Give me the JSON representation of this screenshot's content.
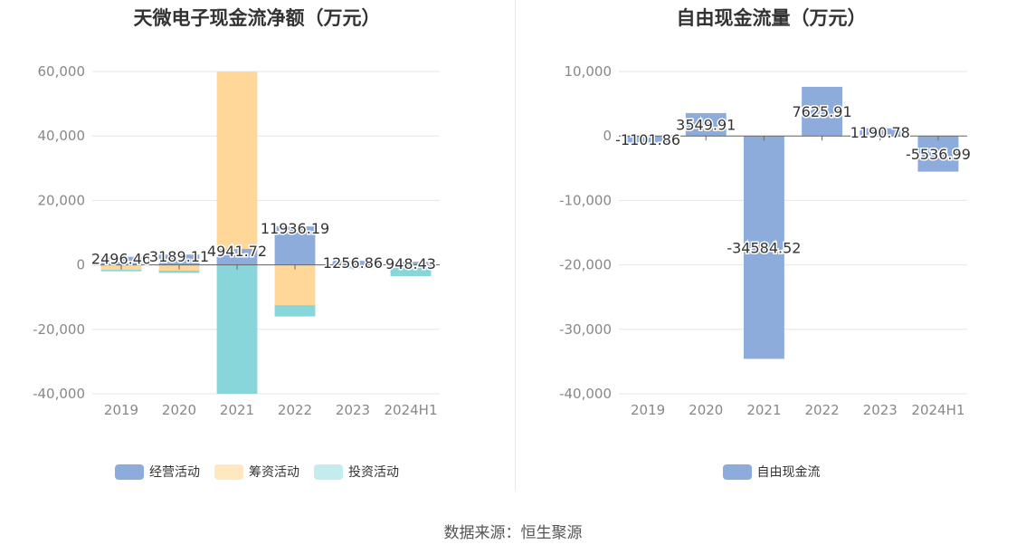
{
  "footer": {
    "source": "数据来源：恒生聚源"
  },
  "chart_data": [
    {
      "type": "bar",
      "title": "天微电子现金流净额（万元）",
      "categories": [
        "2019",
        "2020",
        "2021",
        "2022",
        "2023",
        "2024H1"
      ],
      "y_ticks": [
        60000,
        40000,
        20000,
        0,
        -20000,
        -40000
      ],
      "y_tick_labels": [
        "60,000",
        "40,000",
        "20,000",
        "0",
        "-20,000",
        "-40,000"
      ],
      "ylim": [
        -40000,
        60000
      ],
      "grid": true,
      "legend_position": "bottom",
      "stacked": true,
      "series": [
        {
          "name": "经营活动",
          "color": "#8eacdb",
          "values": [
            2496.46,
            3189.11,
            4941.72,
            11936.19,
            1256.86,
            948.43
          ]
        },
        {
          "name": "筹资活动",
          "color": "#ffd899",
          "values": [
            -1500,
            -1800,
            55000,
            -12500,
            -300,
            -300
          ]
        },
        {
          "name": "投资活动",
          "color": "#88d6da",
          "values": [
            -500,
            -700,
            -40000,
            -3500,
            -800,
            -3200
          ]
        }
      ],
      "data_labels": [
        "2496.46",
        "3189.11",
        "4941.72",
        "11936.19",
        "1256.86",
        "948.43"
      ]
    },
    {
      "type": "bar",
      "title": "自由现金流量（万元）",
      "categories": [
        "2019",
        "2020",
        "2021",
        "2022",
        "2023",
        "2024H1"
      ],
      "y_ticks": [
        10000,
        0,
        -10000,
        -20000,
        -30000,
        -40000
      ],
      "y_tick_labels": [
        "10,000",
        "0",
        "-10,000",
        "-20,000",
        "-30,000",
        "-40,000"
      ],
      "ylim": [
        -40000,
        10000
      ],
      "grid": true,
      "legend_position": "bottom",
      "series": [
        {
          "name": "自由现金流",
          "color": "#8eacdb",
          "values": [
            -1101.86,
            3549.91,
            -34584.52,
            7625.91,
            1190.78,
            -5536.99
          ]
        }
      ],
      "data_labels": [
        "-1101.86",
        "3549.91",
        "-34584.52",
        "7625.91",
        "1190.78",
        "-5536.99"
      ]
    }
  ]
}
